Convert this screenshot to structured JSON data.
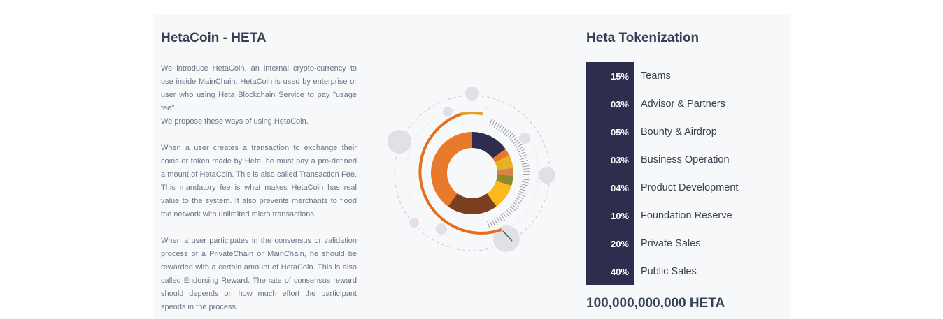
{
  "left": {
    "title": "HetaCoin - HETA",
    "paragraphs": [
      "We introduce HetaCoin, an internal crypto-currency to use inside MainChain. HetaCoin is used by enterprise or user who using Heta Blockchain Service to pay \"usage fee\".",
      "We propose these ways of using HetaCoin.",
      "When a user creates a transaction to exchange their coins or token made by Heta, he must pay a pre-defined a mount of HetaCoin. This is also called Transaction Fee. This mandatory fee is what makes HetaCoin has real value to the system. It also prevents merchants to flood the network with unlimited micro transactions.",
      "When a user participates in the consensus or validation process of a PrivateChain or MainChain, he should be rewarded with a certain amount of HetaCoin. This is also called Endorsing Reward. The rate of consensus reward should depends on how much effort the participant spends in the process."
    ]
  },
  "right": {
    "title": "Heta Tokenization",
    "rows": [
      {
        "pct": "15%",
        "label": "Teams"
      },
      {
        "pct": "03%",
        "label": "Advisor & Partners"
      },
      {
        "pct": "05%",
        "label": "Bounty & Airdrop"
      },
      {
        "pct": "03%",
        "label": "Business Operation"
      },
      {
        "pct": "04%",
        "label": "Product Development"
      },
      {
        "pct": "10%",
        "label": "Foundation Reserve"
      },
      {
        "pct": "20%",
        "label": "Private Sales"
      },
      {
        "pct": "40%",
        "label": "Public Sales"
      }
    ],
    "total": "100,000,000,000 HETA"
  },
  "chart_data": {
    "type": "pie",
    "categories": [
      "Teams",
      "Advisor & Partners",
      "Bounty & Airdrop",
      "Business Operation",
      "Product Development",
      "Foundation Reserve",
      "Private Sales",
      "Public Sales"
    ],
    "values": [
      15,
      3,
      5,
      3,
      4,
      10,
      20,
      40
    ],
    "colors": [
      "#2e2d4e",
      "#e8782a",
      "#e6b224",
      "#d9814a",
      "#8f8a2c",
      "#fbb91c",
      "#7a3f1e",
      "#ea7a2b"
    ]
  }
}
